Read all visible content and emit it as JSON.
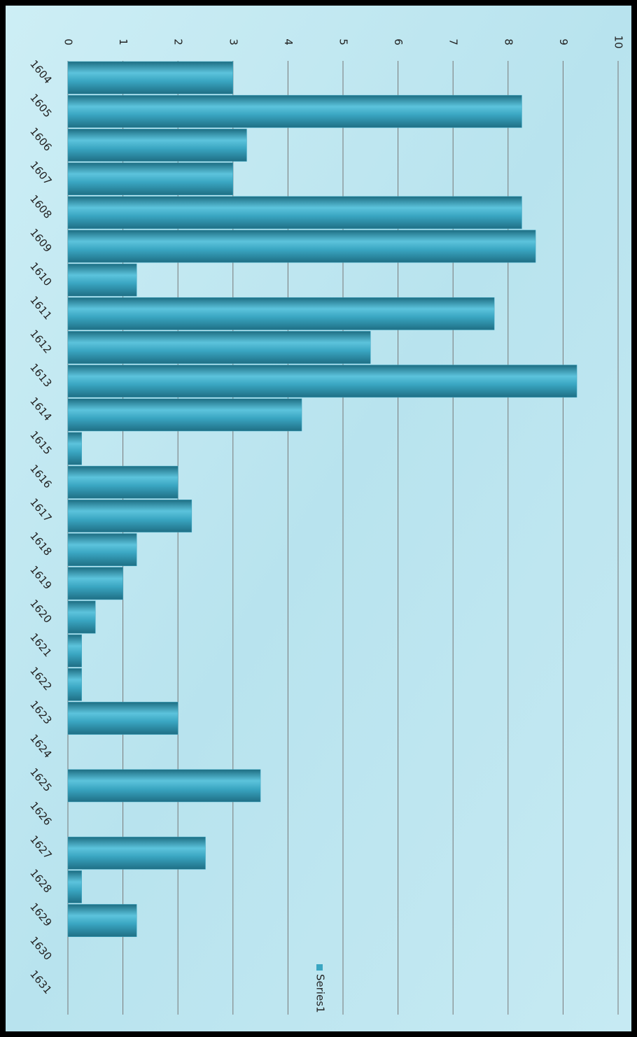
{
  "chart_data": {
    "type": "bar",
    "orientation": "horizontal",
    "categories": [
      "1604",
      "1605",
      "1606",
      "1607",
      "1608",
      "1609",
      "1610",
      "1611",
      "1612",
      "1613",
      "1614",
      "1615",
      "1616",
      "1617",
      "1618",
      "1619",
      "1620",
      "1621",
      "1622",
      "1623",
      "1624",
      "1625",
      "1626",
      "1627",
      "1628",
      "1629",
      "1630",
      "1631"
    ],
    "series": [
      {
        "name": "Series1",
        "color": "#3aa6c2",
        "values": [
          3,
          8.25,
          3.25,
          3,
          8.25,
          8.5,
          1.25,
          7.75,
          5.5,
          9.25,
          4.25,
          0.25,
          2,
          2.25,
          1.25,
          1,
          0.5,
          0.25,
          0.25,
          2,
          0,
          3.5,
          0,
          2.5,
          0.25,
          1.25,
          0,
          0
        ]
      }
    ],
    "ylim": [
      0,
      10
    ],
    "yticks": [
      0,
      1,
      2,
      3,
      4,
      5,
      6,
      7,
      8,
      9,
      10
    ],
    "grid": true
  }
}
